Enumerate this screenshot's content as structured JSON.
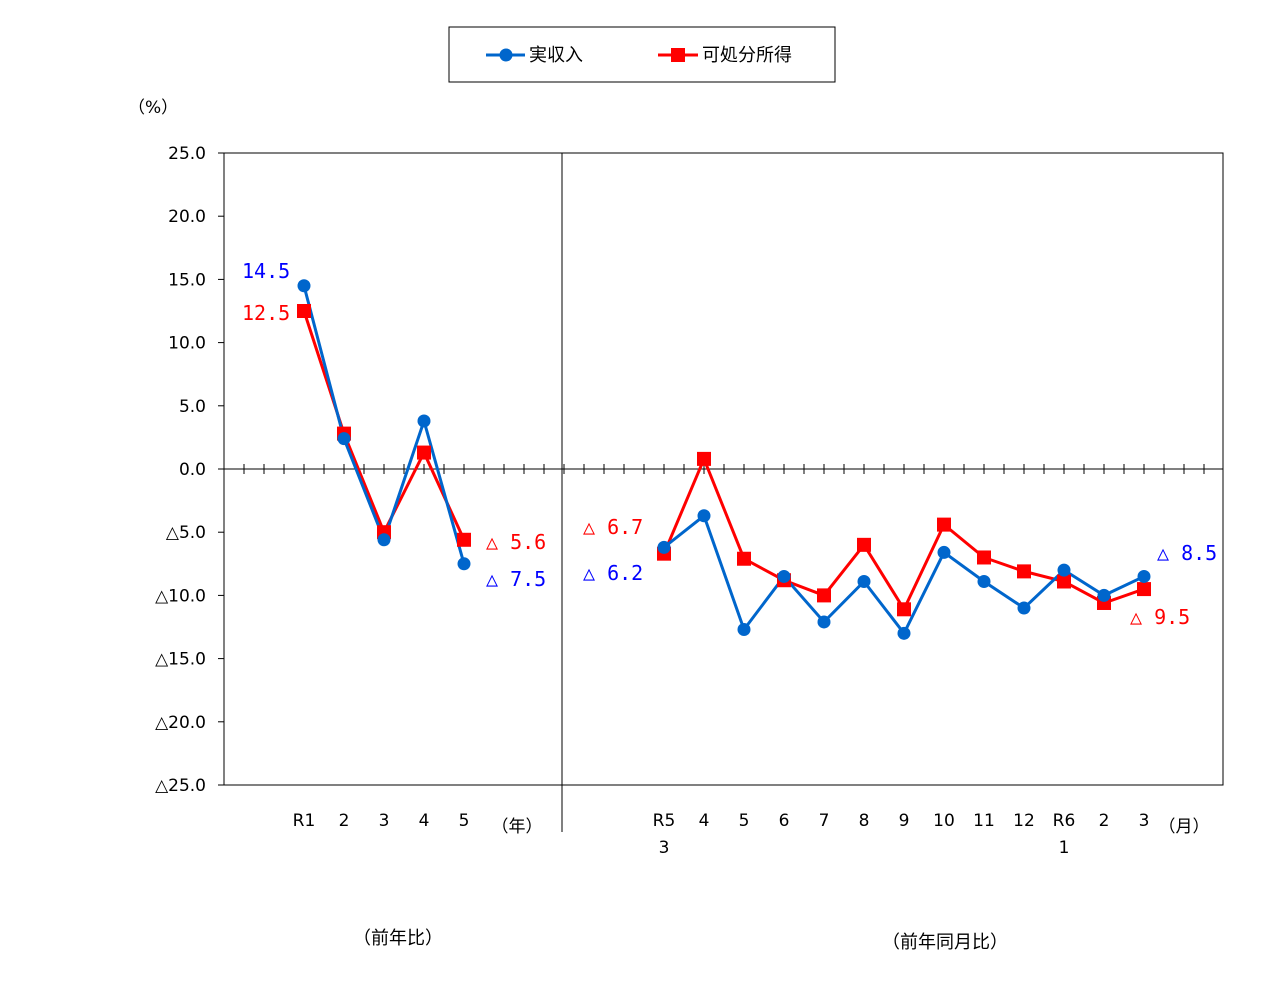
{
  "chart_data": {
    "type": "line",
    "ylabel": "（%）",
    "ylim": [
      -25,
      25
    ],
    "y_ticks": [
      "25.0",
      "20.0",
      "15.0",
      "10.0",
      "5.0",
      "0.0",
      "△5.0",
      "△10.0",
      "△15.0",
      "△20.0",
      "△25.0"
    ],
    "legend": {
      "placement": "top-center",
      "items": [
        "実収入",
        "可処分所得"
      ]
    },
    "colors": {
      "実収入": "#0066CC",
      "可処分所得": "#FF0000"
    },
    "annual": {
      "categories": [
        "R1",
        "2",
        "3",
        "4",
        "5"
      ],
      "unit_label": "（年）",
      "caption": "（前年比）",
      "series": [
        {
          "name": "実収入",
          "values": [
            14.5,
            2.4,
            -5.6,
            3.8,
            -7.5
          ]
        },
        {
          "name": "可処分所得",
          "values": [
            12.5,
            2.8,
            -5.0,
            1.3,
            -5.6
          ]
        }
      ]
    },
    "monthly": {
      "categories": [
        [
          "R5",
          "3"
        ],
        [
          "4"
        ],
        [
          "5"
        ],
        [
          "6"
        ],
        [
          "7"
        ],
        [
          "8"
        ],
        [
          "9"
        ],
        [
          "10"
        ],
        [
          "11"
        ],
        [
          "12"
        ],
        [
          "R6",
          "1"
        ],
        [
          "2"
        ],
        [
          "3"
        ]
      ],
      "unit_label": "（月）",
      "caption": "（前年同月比）",
      "series": [
        {
          "name": "実収入",
          "values": [
            -6.2,
            -3.7,
            -12.7,
            -8.5,
            -12.1,
            -8.9,
            -13.0,
            -6.6,
            -8.9,
            -11.0,
            -8.0,
            -10.0,
            -8.5
          ]
        },
        {
          "name": "可処分所得",
          "values": [
            -6.7,
            0.8,
            -7.1,
            -8.8,
            -10.0,
            -6.0,
            -11.1,
            -4.4,
            -7.0,
            -8.1,
            -8.9,
            -10.6,
            -9.5
          ]
        }
      ]
    },
    "annotations": [
      {
        "text": "14.5",
        "color": "#0000FF"
      },
      {
        "text": "12.5",
        "color": "#FF0000"
      },
      {
        "text": "△ 5.6",
        "color": "#FF0000"
      },
      {
        "text": "△ 7.5",
        "color": "#0000FF"
      },
      {
        "text": "△ 6.7",
        "color": "#FF0000"
      },
      {
        "text": "△ 6.2",
        "color": "#0000FF"
      },
      {
        "text": "△ 8.5",
        "color": "#0000FF"
      },
      {
        "text": "△ 9.5",
        "color": "#FF0000"
      }
    ]
  }
}
